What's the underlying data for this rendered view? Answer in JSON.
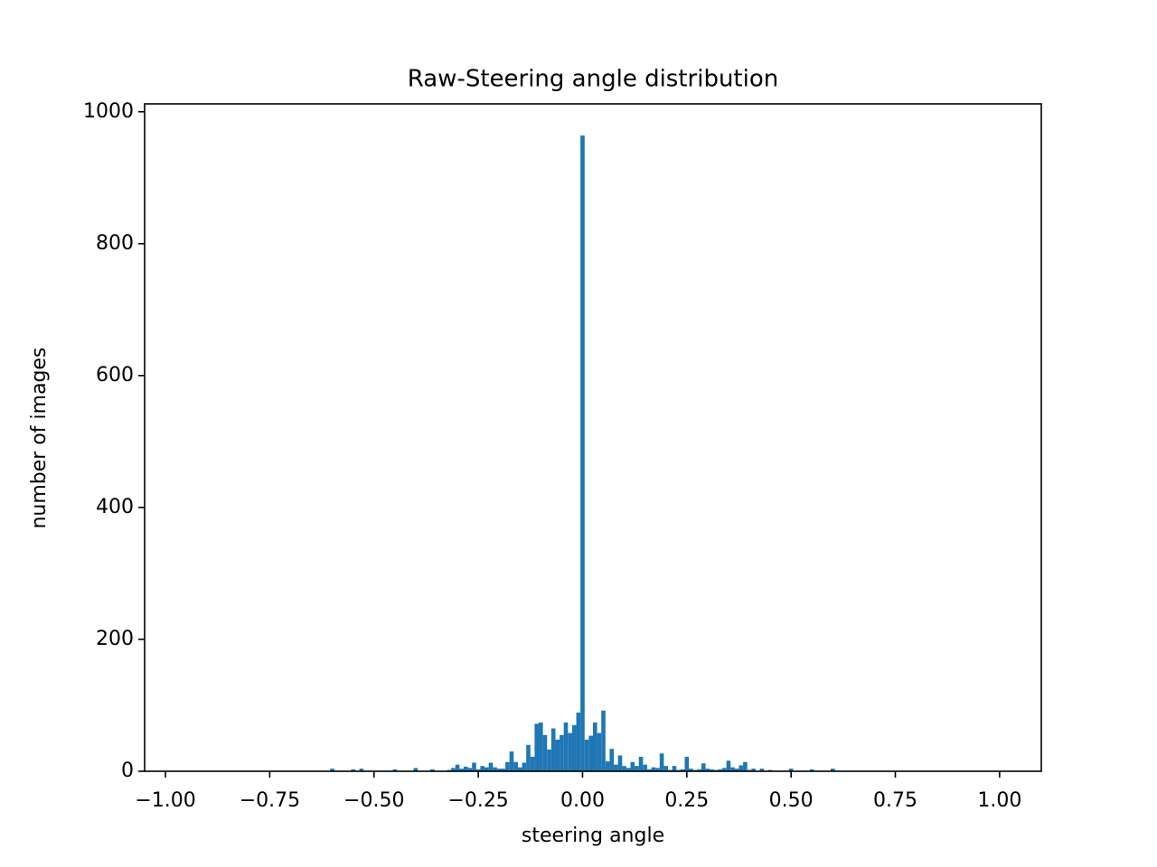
{
  "chart_data": {
    "type": "histogram",
    "title": "Raw-Steering angle distribution",
    "x_label": "steering angle",
    "y_label": "number of images",
    "color": "#1f77b4",
    "bins": [
      -0.605,
      -0.595,
      -0.585,
      -0.575,
      -0.565,
      -0.555,
      -0.545,
      -0.535,
      -0.525,
      -0.515,
      -0.505,
      -0.495,
      -0.485,
      -0.475,
      -0.465,
      -0.455,
      -0.445,
      -0.435,
      -0.425,
      -0.415,
      -0.405,
      -0.395,
      -0.385,
      -0.375,
      -0.365,
      -0.355,
      -0.345,
      -0.335,
      -0.325,
      -0.315,
      -0.305,
      -0.295,
      -0.285,
      -0.275,
      -0.265,
      -0.255,
      -0.245,
      -0.235,
      -0.225,
      -0.215,
      -0.205,
      -0.195,
      -0.185,
      -0.175,
      -0.165,
      -0.155,
      -0.145,
      -0.135,
      -0.125,
      -0.115,
      -0.105,
      -0.095,
      -0.085,
      -0.075,
      -0.065,
      -0.055,
      -0.045,
      -0.035,
      -0.025,
      -0.015,
      -0.005,
      0.005,
      0.015,
      0.025,
      0.035,
      0.045,
      0.055,
      0.065,
      0.075,
      0.085,
      0.095,
      0.105,
      0.115,
      0.125,
      0.135,
      0.145,
      0.155,
      0.165,
      0.175,
      0.185,
      0.195,
      0.205,
      0.215,
      0.225,
      0.235,
      0.245,
      0.255,
      0.265,
      0.275,
      0.285,
      0.295,
      0.305,
      0.315,
      0.325,
      0.335,
      0.345,
      0.355,
      0.365,
      0.375,
      0.385,
      0.395,
      0.405,
      0.415,
      0.425,
      0.435,
      0.445,
      0.455,
      0.465,
      0.475,
      0.485,
      0.495,
      0.505,
      0.515,
      0.525,
      0.535,
      0.545,
      0.555,
      0.565,
      0.575,
      0.585,
      0.595,
      0.605
    ],
    "counts": [
      4,
      0,
      0,
      0,
      0,
      3,
      0,
      4,
      0,
      0,
      0,
      0,
      0,
      0,
      0,
      3,
      0,
      0,
      0,
      0,
      5,
      0,
      0,
      0,
      3,
      0,
      0,
      0,
      2,
      5,
      10,
      4,
      7,
      5,
      13,
      3,
      8,
      6,
      13,
      6,
      4,
      4,
      14,
      30,
      14,
      6,
      13,
      40,
      22,
      72,
      74,
      55,
      33,
      65,
      48,
      55,
      74,
      58,
      70,
      89,
      964,
      48,
      54,
      74,
      58,
      92,
      15,
      34,
      10,
      24,
      8,
      5,
      14,
      8,
      22,
      10,
      3,
      6,
      5,
      27,
      8,
      2,
      8,
      2,
      3,
      22,
      4,
      2,
      3,
      12,
      4,
      3,
      2,
      3,
      5,
      16,
      6,
      4,
      9,
      14,
      2,
      4,
      0,
      4,
      0,
      2,
      0,
      0,
      0,
      0,
      4,
      0,
      0,
      0,
      0,
      3,
      0,
      0,
      0,
      0,
      4
    ],
    "xlim": [
      -1.05,
      1.1
    ],
    "xticks": [
      {
        "value": -1,
        "label": "−1.00"
      },
      {
        "value": -0.75,
        "label": "−0.75"
      },
      {
        "value": -0.5,
        "label": "−0.50"
      },
      {
        "value": -0.25,
        "label": "−0.25"
      },
      {
        "value": 0,
        "label": "0.00"
      },
      {
        "value": 0.25,
        "label": "0.25"
      },
      {
        "value": 0.5,
        "label": "0.50"
      },
      {
        "value": 0.75,
        "label": "0.75"
      },
      {
        "value": 1,
        "label": "1.00"
      }
    ],
    "ylim": [
      0,
      1012
    ],
    "yticks": [
      0,
      200,
      400,
      600,
      800,
      1000
    ]
  }
}
